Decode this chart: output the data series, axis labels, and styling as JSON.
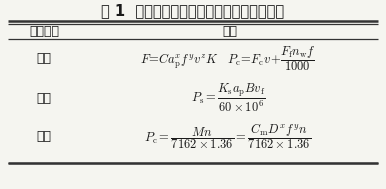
{
  "title": "表 1  不同加工方式下的切削力切削功率模型",
  "header_col1": "加工方式",
  "header_col2": "模型",
  "row1_process": "车削",
  "row2_process": "铣削",
  "row3_process": "钻削",
  "bg_color": "#f5f5f0",
  "text_color": "#1a1a1a",
  "title_fontsize": 10.5,
  "header_fontsize": 9,
  "formula_fontsize": 9,
  "process_fontsize": 9,
  "line_color": "#333333"
}
